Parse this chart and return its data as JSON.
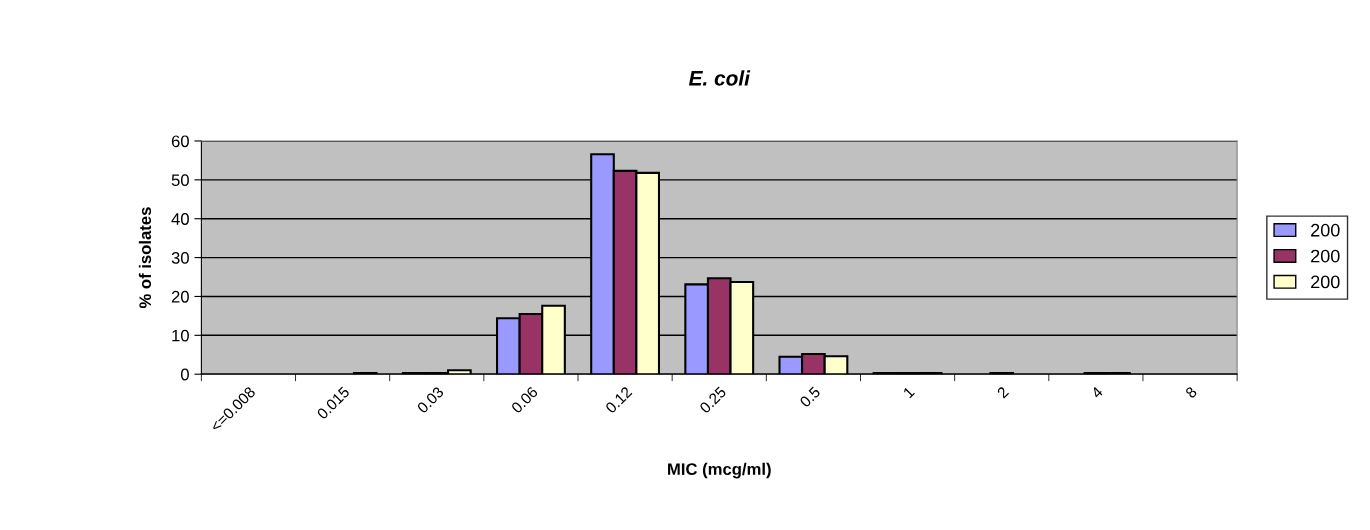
{
  "chart_data": {
    "type": "bar",
    "title": "E. coli",
    "xlabel": "MIC (mcg/ml)",
    "ylabel": "% of isolates",
    "categories": [
      "<=0.008",
      "0.015",
      "0.03",
      "0.06",
      "0.12",
      "0.25",
      "0.5",
      "1",
      "2",
      "4",
      "8"
    ],
    "series": [
      {
        "name": "200",
        "color": "#9999ff",
        "values": [
          0,
          0,
          0.3,
          14.4,
          56.6,
          23.1,
          4.5,
          0.3,
          0,
          0,
          0
        ]
      },
      {
        "name": "200",
        "color": "#993366",
        "values": [
          0,
          0,
          0.3,
          15.5,
          52.3,
          24.7,
          5.2,
          0.3,
          0.3,
          0.3,
          0
        ]
      },
      {
        "name": "200",
        "color": "#ffffcc",
        "values": [
          0,
          0.3,
          1,
          17.6,
          51.8,
          23.7,
          4.6,
          0.3,
          0,
          0.3,
          0
        ]
      }
    ],
    "ylim": [
      0,
      60
    ],
    "yticks": [
      0,
      10,
      20,
      30,
      40,
      50,
      60
    ],
    "grid": "y",
    "legend": "right"
  }
}
